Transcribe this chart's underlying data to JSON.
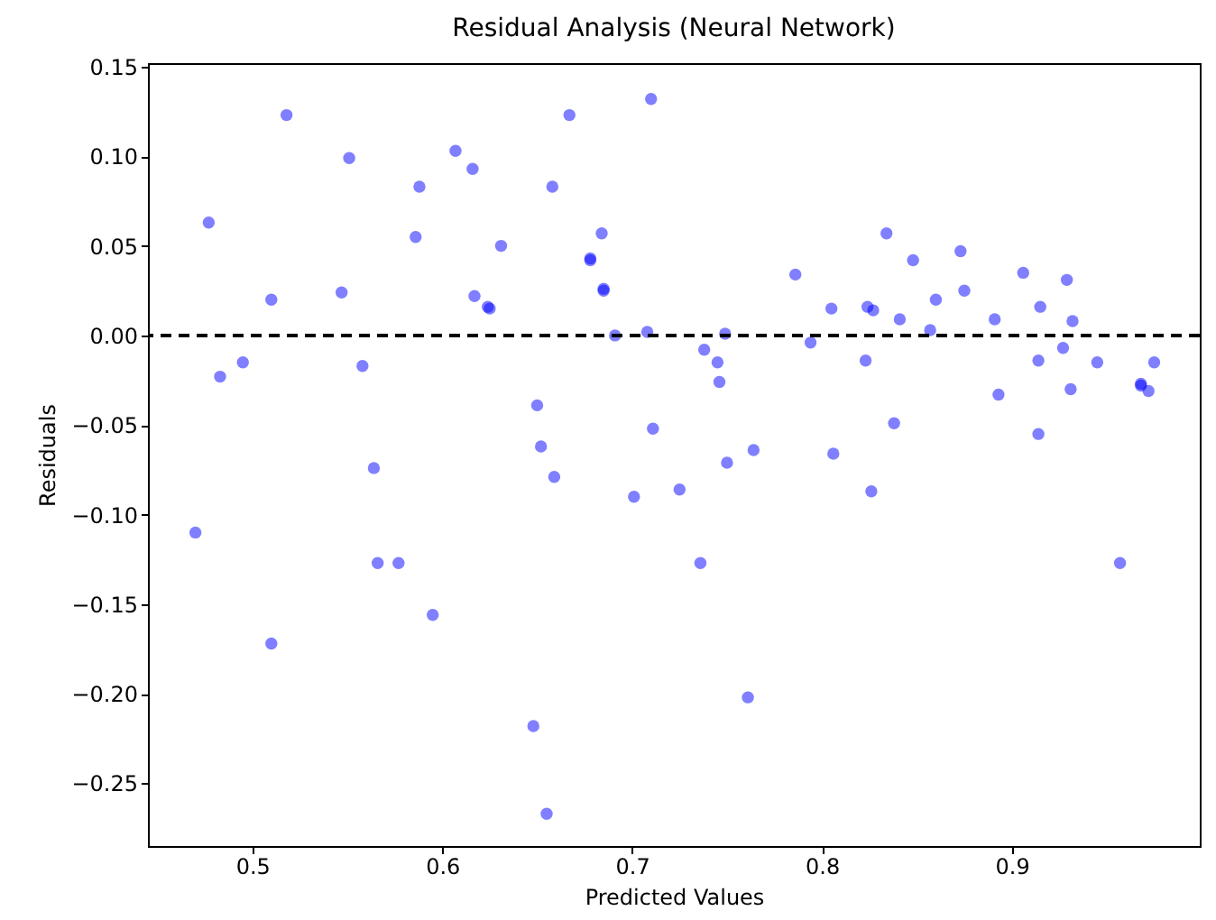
{
  "chart_data": {
    "type": "scatter",
    "title": "Residual Analysis (Neural Network)",
    "xlabel": "Predicted Values",
    "ylabel": "Residuals",
    "series": [
      {
        "color": "#0000ff",
        "x": [
          0.47,
          0.477,
          0.483,
          0.495,
          0.51,
          0.51,
          0.518,
          0.547,
          0.551,
          0.558,
          0.564,
          0.566,
          0.577,
          0.586,
          0.588,
          0.595,
          0.607,
          0.616,
          0.617,
          0.624,
          0.625,
          0.631,
          0.648,
          0.65,
          0.652,
          0.655,
          0.658,
          0.659,
          0.667,
          0.678,
          0.678,
          0.684,
          0.685,
          0.685,
          0.691,
          0.701,
          0.708,
          0.71,
          0.711,
          0.725,
          0.736,
          0.738,
          0.745,
          0.746,
          0.749,
          0.75,
          0.761,
          0.764,
          0.786,
          0.794,
          0.805,
          0.806,
          0.823,
          0.824,
          0.826,
          0.827,
          0.834,
          0.838,
          0.841,
          0.848,
          0.857,
          0.86,
          0.873,
          0.875,
          0.891,
          0.893,
          0.906,
          0.914,
          0.914,
          0.915,
          0.927,
          0.929,
          0.931,
          0.932,
          0.945,
          0.957,
          0.968,
          0.968,
          0.972,
          0.975
        ],
        "values": [
          -0.11,
          0.063,
          -0.023,
          -0.015,
          0.02,
          -0.172,
          0.123,
          0.024,
          0.099,
          -0.017,
          -0.074,
          -0.127,
          -0.127,
          0.055,
          0.083,
          -0.156,
          0.103,
          0.093,
          0.022,
          0.016,
          0.015,
          0.05,
          -0.218,
          -0.039,
          -0.062,
          -0.267,
          0.083,
          -0.079,
          0.123,
          0.042,
          0.043,
          0.057,
          0.025,
          0.026,
          0.0,
          -0.09,
          0.002,
          0.132,
          -0.052,
          -0.086,
          -0.127,
          -0.008,
          -0.015,
          -0.026,
          0.001,
          -0.071,
          -0.202,
          -0.064,
          0.034,
          -0.004,
          0.015,
          -0.066,
          -0.014,
          0.016,
          -0.087,
          0.014,
          0.057,
          -0.049,
          0.009,
          0.042,
          0.003,
          0.02,
          0.047,
          0.025,
          0.009,
          -0.033,
          0.035,
          -0.014,
          -0.055,
          0.016,
          -0.007,
          0.031,
          -0.03,
          0.008,
          -0.015,
          -0.127,
          -0.027,
          -0.028,
          -0.031,
          -0.015
        ]
      }
    ],
    "xlim": [
      0.445,
      0.999
    ],
    "ylim": [
      -0.285,
      0.152
    ],
    "xticks": [
      0.5,
      0.6,
      0.7,
      0.8,
      0.9
    ],
    "yticks": [
      {
        "value": -0.25,
        "label": "−0.25"
      },
      {
        "value": -0.2,
        "label": "−0.20"
      },
      {
        "value": -0.15,
        "label": "−0.15"
      },
      {
        "value": -0.1,
        "label": "−0.10"
      },
      {
        "value": -0.05,
        "label": "−0.05"
      },
      {
        "value": 0,
        "label": "0.00"
      },
      {
        "value": 0.05,
        "label": "0.05"
      },
      {
        "value": 0.1,
        "label": "0.10"
      },
      {
        "value": 0.15,
        "label": "0.15"
      }
    ],
    "ref_lines": [
      {
        "axis": "y",
        "value": 0,
        "color": "#000000",
        "line_style": "dashed"
      }
    ],
    "marker": "circle",
    "grid": false
  }
}
